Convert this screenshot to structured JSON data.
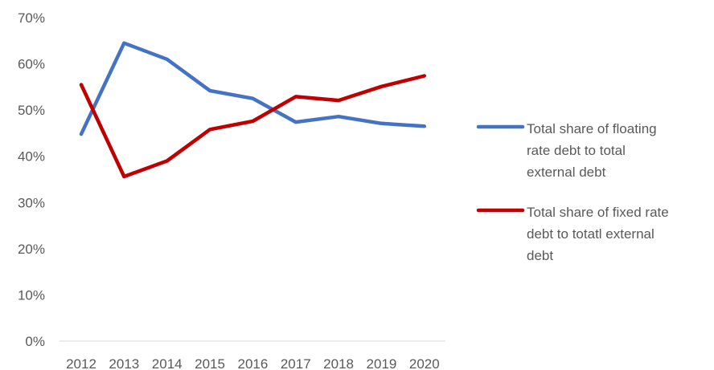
{
  "chart_data": {
    "type": "line",
    "title": "",
    "xlabel": "",
    "ylabel": "",
    "categories": [
      "2012",
      "2013",
      "2014",
      "2015",
      "2016",
      "2017",
      "2018",
      "2019",
      "2020"
    ],
    "ylim": [
      0,
      0.7
    ],
    "y_ticks": [
      0,
      0.1,
      0.2,
      0.3,
      0.4,
      0.5,
      0.6,
      0.7
    ],
    "y_tick_labels": [
      "0%",
      "10%",
      "20%",
      "30%",
      "40%",
      "50%",
      "60%",
      "70%"
    ],
    "grid": false,
    "legend_position": "right",
    "series": [
      {
        "name": "Total share of floating rate debt to total external debt",
        "legend_lines": [
          "Total share of floating",
          "rate debt to total",
          "external debt"
        ],
        "color": "#4472C4",
        "values": [
          0.448,
          0.645,
          0.61,
          0.542,
          0.525,
          0.474,
          0.486,
          0.471,
          0.465
        ]
      },
      {
        "name": "Total share of fixed rate debt to totatl external debt",
        "legend_lines": [
          "Total share of fixed rate",
          "debt to totatl external",
          "debt"
        ],
        "color": "#C00000",
        "values": [
          0.555,
          0.356,
          0.39,
          0.458,
          0.476,
          0.529,
          0.521,
          0.551,
          0.574
        ]
      }
    ]
  }
}
